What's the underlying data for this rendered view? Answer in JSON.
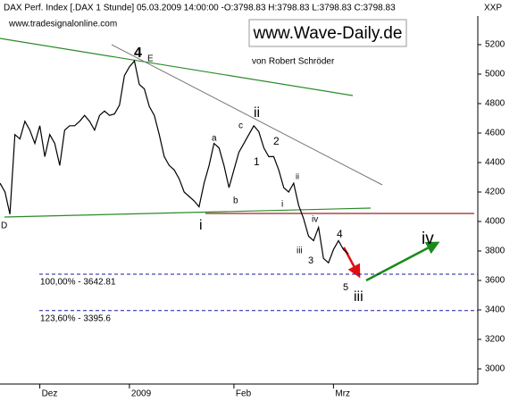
{
  "chart_data": {
    "type": "line",
    "title": "DAX Perf. Index [.DAX  1 Stunde] 05.03.2009 14:00:00 -O:3798.83 H:3798.83 L:3798.83 C:3798.83",
    "axis_label": "XXP",
    "watermark": "www.tradesignalonline.com",
    "banner": "www.Wave-Daily.de",
    "author": "von Robert Schröder",
    "categories": [
      null,
      null,
      null,
      null,
      null,
      null,
      null,
      null,
      "Dez",
      null,
      null,
      null,
      null,
      null,
      null,
      null,
      null,
      null,
      null,
      null,
      null,
      null,
      null,
      null,
      null,
      null,
      "2009",
      null,
      null,
      null,
      null,
      null,
      null,
      null,
      null,
      null,
      null,
      null,
      null,
      null,
      null,
      null,
      null,
      null,
      null,
      null,
      null,
      "Feb",
      null,
      null,
      null,
      null,
      null,
      null,
      null,
      null,
      null,
      null,
      null,
      null,
      null,
      null,
      null,
      null,
      null,
      null,
      null,
      "Mrz",
      null,
      null,
      null,
      null,
      null,
      null,
      null,
      null,
      null,
      null,
      null,
      null,
      null,
      null,
      null,
      null,
      null,
      null,
      null,
      null,
      null,
      null,
      null,
      null,
      null,
      null,
      null,
      null
    ],
    "series": [
      {
        "name": "DAX",
        "color": "#000000",
        "values": [
          4260,
          4200,
          4050,
          4590,
          4560,
          4680,
          4620,
          4530,
          4650,
          4440,
          4590,
          4530,
          4380,
          4620,
          4650,
          4650,
          4680,
          4720,
          4680,
          4620,
          4720,
          4750,
          4720,
          4730,
          4790,
          4990,
          5050,
          5090,
          4930,
          4900,
          4780,
          4720,
          4590,
          4440,
          4380,
          4350,
          4290,
          4200,
          4170,
          4140,
          4100,
          4260,
          4380,
          4530,
          4500,
          4380,
          4230,
          4350,
          4470,
          4530,
          4590,
          4650,
          4610,
          4500,
          4440,
          4440,
          4350,
          4230,
          4200,
          4260,
          4110,
          4020,
          3900,
          3870,
          3960,
          3750,
          3720,
          3810,
          3870,
          3810,
          3780,
          null,
          null,
          null,
          null,
          null,
          null,
          null,
          null,
          null,
          null,
          null,
          null,
          null,
          null,
          null,
          null,
          null,
          null,
          null,
          null,
          null,
          null,
          null,
          null,
          null
        ]
      }
    ],
    "ylim": [
      2897,
      5394
    ],
    "yticks": [
      3000,
      3200,
      3400,
      3600,
      3800,
      4000,
      4200,
      4400,
      4600,
      4800,
      5000,
      5200
    ],
    "grid": false,
    "levels": [
      {
        "value": 3642.81,
        "label": "100,00% - 3642.81",
        "color": "#1a1aa0"
      },
      {
        "value": 3395.6,
        "label": "123,60% - 3395.6",
        "color": "#1a1aa0"
      }
    ],
    "annotations": [
      "4",
      "E",
      "ii",
      "a",
      "c",
      "2",
      "1",
      "b",
      "i",
      "i",
      "ii",
      "iv",
      "4",
      "iii",
      "3",
      "5",
      "iii",
      "iv",
      "D"
    ]
  }
}
